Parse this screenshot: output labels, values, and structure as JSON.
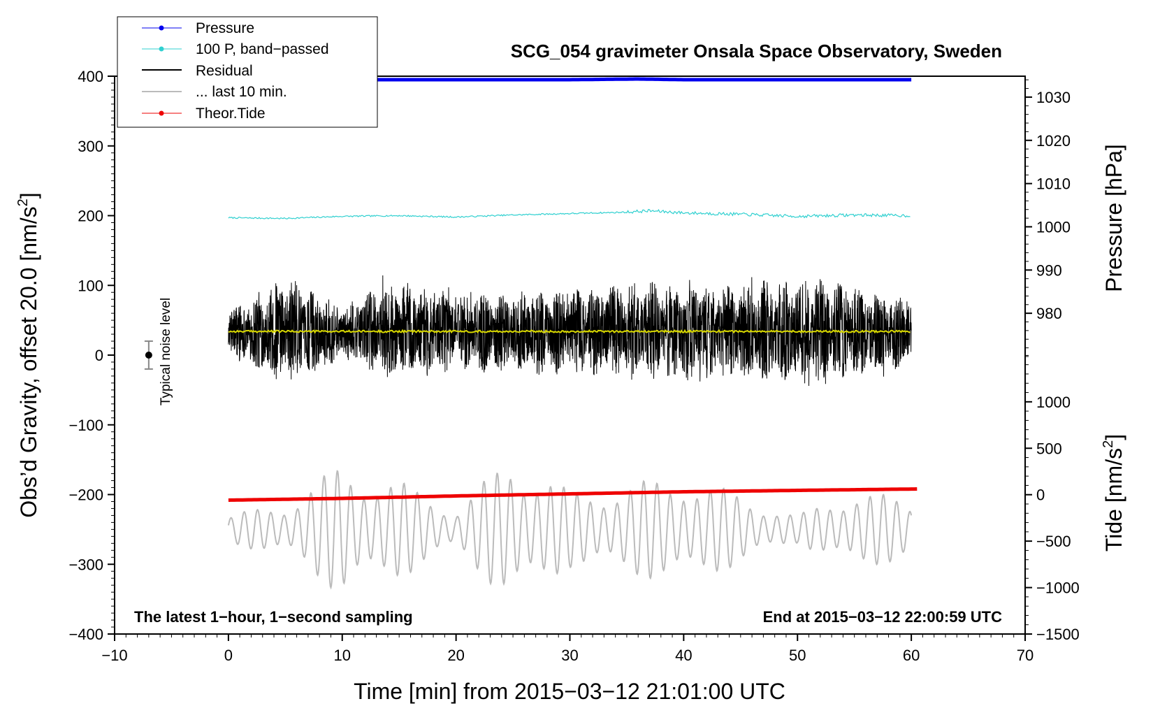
{
  "chart_data": {
    "type": "line",
    "title": "SCG_054 gravimeter Onsala Space Observatory, Sweden",
    "xlabel": "Time [min] from 2015−03−12 21:01:00 UTC",
    "ylabel": "Obs’d Gravity, offset 20.0 [nm/s²]",
    "ylabel_main": "Obs’d Gravity, offset 20.0 [nm/s",
    "ylabel_sup": "2",
    "ylabel_end": "]",
    "xlim": [
      -10,
      70
    ],
    "ylim": [
      -400,
      400
    ],
    "xticks": [
      -10,
      0,
      10,
      20,
      30,
      40,
      50,
      60,
      70
    ],
    "yticks": [
      400,
      300,
      200,
      100,
      0,
      -100,
      -200,
      -300,
      -400
    ],
    "xtick_labels": [
      "−10",
      "0",
      "10",
      "20",
      "30",
      "40",
      "50",
      "60",
      "70"
    ],
    "ytick_labels": [
      "400",
      "300",
      "200",
      "100",
      "0",
      "−100",
      "−200",
      "−300",
      "−400"
    ],
    "right_axes": [
      {
        "name": "pressure",
        "label": "Pressure [hPa]",
        "ticks": [
          1030,
          1020,
          1010,
          1000,
          990,
          980
        ],
        "tick_labels": [
          "1030",
          "1020",
          "1010",
          "1000",
          "990",
          "980"
        ],
        "gravity_at": [
          [
            1030,
            370
          ],
          [
            980,
            60
          ]
        ]
      },
      {
        "name": "tide",
        "label": "Tide [nm/s²]",
        "label_main": "Tide [nm/s",
        "label_sup": "2",
        "label_end": "]",
        "ticks": [
          1000,
          500,
          0,
          -500,
          -1000,
          -1500
        ],
        "tick_labels": [
          "1000",
          "500",
          "0",
          "−500",
          "−1000",
          "−1500"
        ],
        "gravity_at": [
          [
            1000,
            -67
          ],
          [
            -1500,
            -400
          ]
        ]
      }
    ],
    "series": [
      {
        "name": "Pressure",
        "color": "#0000ee",
        "style": "thick line",
        "x": [
          0,
          10,
          20,
          30,
          36,
          40,
          50,
          60
        ],
        "y": [
          395,
          395,
          395,
          395,
          396,
          395,
          395,
          395
        ]
      },
      {
        "name": "100 P, band−passed",
        "color": "#30d0d0",
        "style": "thin line",
        "x": [
          0,
          5,
          10,
          15,
          20,
          25,
          30,
          35,
          37,
          40,
          45,
          50,
          55,
          60
        ],
        "y": [
          197,
          196,
          199,
          200,
          198,
          201,
          203,
          205,
          207,
          204,
          202,
          199,
          201,
          200
        ]
      },
      {
        "name": "Residual",
        "color": "#000000",
        "style": "noisy line",
        "baseline": 34,
        "x": [
          0,
          5,
          10,
          15,
          20,
          25,
          30,
          35,
          40,
          45,
          50,
          55,
          60
        ],
        "amplitude": [
          35,
          80,
          40,
          75,
          55,
          60,
          65,
          70,
          75,
          70,
          80,
          70,
          50
        ]
      },
      {
        "name": "... last 10 min.",
        "color": "#bbbbbb",
        "style": "oscillation",
        "baseline": -250,
        "x": [
          0,
          5,
          10,
          15,
          20,
          25,
          30,
          35,
          40,
          45,
          50,
          55,
          60
        ],
        "amplitude": [
          20,
          40,
          95,
          70,
          30,
          110,
          55,
          65,
          80,
          50,
          20,
          60,
          40
        ]
      },
      {
        "name": "Theor.Tide",
        "color": "#ee0000",
        "style": "thick line",
        "x": [
          0,
          10,
          20,
          30,
          40,
          50,
          60.5
        ],
        "y": [
          -208,
          -205.5,
          -202,
          -199,
          -196,
          -194,
          -192
        ]
      }
    ],
    "yellow_mean": {
      "color": "#d8d800",
      "y": 34
    },
    "noise_level": {
      "label": "Typical noise level",
      "x": -7,
      "y": 0,
      "error": 20
    },
    "legend": [
      "Pressure",
      "100 P, band−passed",
      "Residual",
      "... last 10 min.",
      "Theor.Tide"
    ],
    "legend_position": "top-left",
    "annotations": {
      "bottom_left": "The latest 1−hour, 1−second sampling",
      "bottom_right": "End at 2015−03−12 22:00:59 UTC"
    }
  }
}
